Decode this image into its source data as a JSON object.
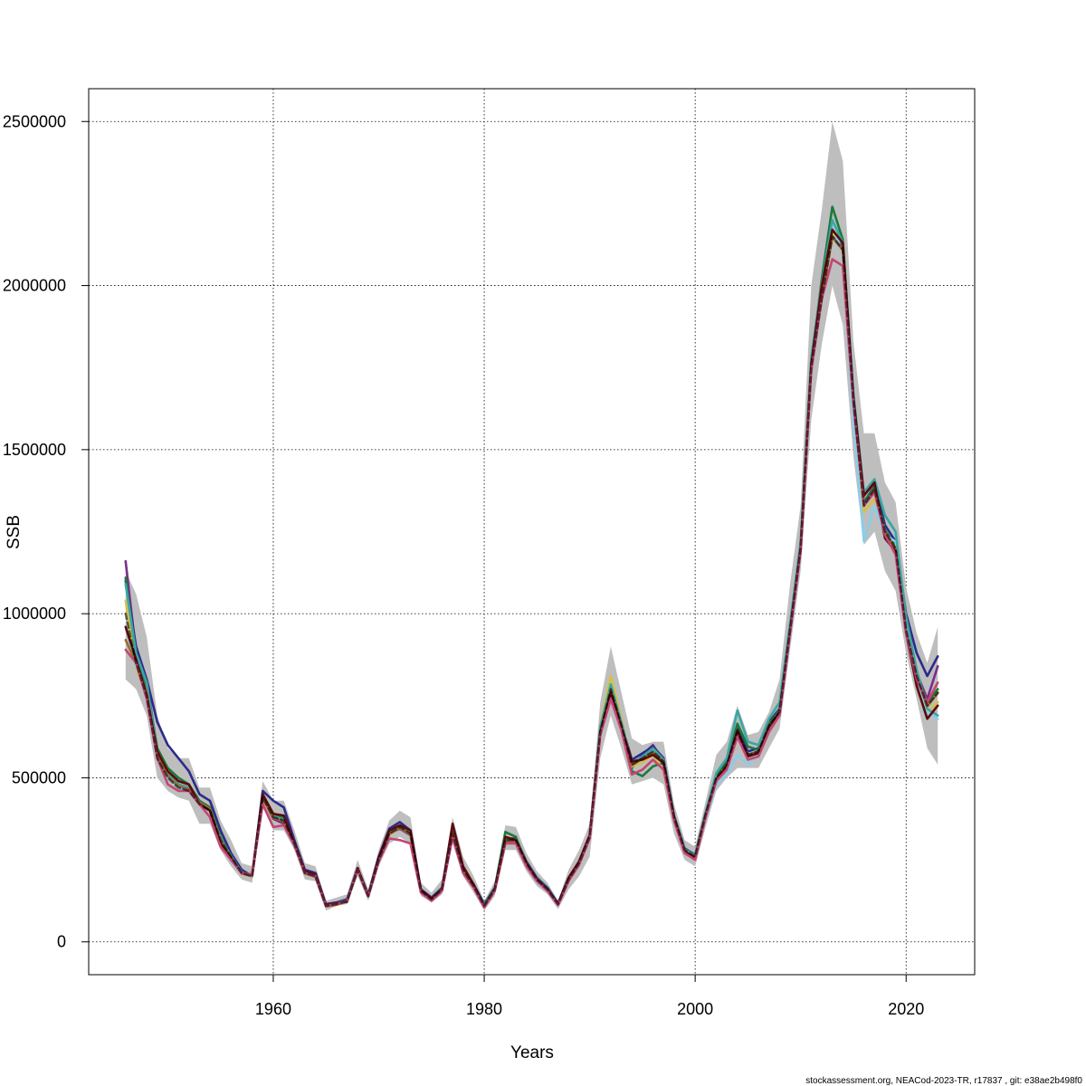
{
  "chart_data": {
    "type": "line",
    "title": "",
    "xlabel": "Years",
    "ylabel": "SSB",
    "xlim": [
      1942.5,
      2026.5
    ],
    "ylim": [
      -100000,
      2600000
    ],
    "x_ticks": [
      1960,
      1980,
      2000,
      2020
    ],
    "y_ticks": [
      0,
      500000,
      1000000,
      1500000,
      2000000,
      2500000
    ],
    "x_tick_labels": [
      "1960",
      "1980",
      "2000",
      "2020"
    ],
    "y_tick_labels": [
      "0",
      "500000",
      "1000000",
      "1500000",
      "2000000",
      "2500000"
    ],
    "grid": true,
    "legend": "none",
    "band_color": "#bebebe",
    "x": [
      1946,
      1947,
      1948,
      1949,
      1950,
      1951,
      1952,
      1953,
      1954,
      1955,
      1956,
      1957,
      1958,
      1959,
      1960,
      1961,
      1962,
      1963,
      1964,
      1965,
      1966,
      1967,
      1968,
      1969,
      1970,
      1971,
      1972,
      1973,
      1974,
      1975,
      1976,
      1977,
      1978,
      1979,
      1980,
      1981,
      1982,
      1983,
      1984,
      1985,
      1986,
      1987,
      1988,
      1989,
      1990,
      1991,
      1992,
      1993,
      1994,
      1995,
      1996,
      1997,
      1998,
      1999,
      2000,
      2001,
      2002,
      2003,
      2004,
      2005,
      2006,
      2007,
      2008,
      2009,
      2010,
      2011,
      2012,
      2013,
      2014,
      2015,
      2016,
      2017,
      2018,
      2019,
      2020,
      2021,
      2022,
      2023
    ],
    "base": [
      1000000,
      850000,
      750000,
      560000,
      500000,
      470000,
      460000,
      420000,
      400000,
      310000,
      260000,
      210000,
      200000,
      440000,
      380000,
      370000,
      300000,
      210000,
      200000,
      110000,
      115000,
      125000,
      220000,
      140000,
      250000,
      330000,
      350000,
      330000,
      155000,
      130000,
      160000,
      330000,
      220000,
      170000,
      110000,
      160000,
      310000,
      310000,
      240000,
      190000,
      160000,
      115000,
      190000,
      240000,
      320000,
      640000,
      770000,
      660000,
      540000,
      560000,
      580000,
      550000,
      380000,
      280000,
      260000,
      390000,
      500000,
      540000,
      640000,
      570000,
      580000,
      660000,
      700000,
      950000,
      1200000,
      1750000,
      1960000,
      2150000,
      2110000,
      1650000,
      1330000,
      1380000,
      1250000,
      1200000,
      950000,
      810000,
      720000,
      760000
    ],
    "lower": [
      800000,
      770000,
      690000,
      500000,
      460000,
      440000,
      430000,
      360000,
      360000,
      280000,
      230000,
      190000,
      180000,
      410000,
      340000,
      340000,
      280000,
      190000,
      185000,
      95000,
      110000,
      115000,
      200000,
      125000,
      230000,
      300000,
      320000,
      300000,
      140000,
      120000,
      145000,
      300000,
      200000,
      150000,
      95000,
      140000,
      280000,
      280000,
      215000,
      170000,
      145000,
      100000,
      160000,
      200000,
      260000,
      560000,
      690000,
      590000,
      480000,
      490000,
      500000,
      480000,
      330000,
      250000,
      230000,
      350000,
      460000,
      500000,
      530000,
      530000,
      530000,
      590000,
      650000,
      890000,
      1130000,
      1590000,
      1820000,
      2000000,
      1880000,
      1480000,
      1210000,
      1250000,
      1130000,
      1070000,
      880000,
      740000,
      590000,
      540000
    ],
    "upper": [
      1130000,
      1060000,
      930000,
      690000,
      590000,
      560000,
      560000,
      470000,
      470000,
      370000,
      310000,
      240000,
      230000,
      490000,
      430000,
      430000,
      340000,
      240000,
      230000,
      125000,
      135000,
      145000,
      250000,
      160000,
      280000,
      370000,
      400000,
      380000,
      180000,
      150000,
      190000,
      380000,
      260000,
      200000,
      125000,
      185000,
      355000,
      350000,
      270000,
      215000,
      180000,
      125000,
      220000,
      280000,
      360000,
      730000,
      900000,
      760000,
      620000,
      600000,
      610000,
      610000,
      420000,
      310000,
      290000,
      430000,
      570000,
      610000,
      720000,
      630000,
      640000,
      700000,
      800000,
      1090000,
      1330000,
      2000000,
      2230000,
      2500000,
      2380000,
      1830000,
      1550000,
      1550000,
      1400000,
      1340000,
      1080000,
      940000,
      850000,
      960000
    ],
    "series": [
      {
        "color": "#7b2d8b",
        "values": [
          1160000,
          880000,
          800000,
          580000,
          510000,
          480000,
          470000,
          420000,
          400000,
          300000,
          250000,
          210000,
          200000,
          440000,
          375000,
          360000,
          295000,
          210000,
          200000,
          110000,
          115000,
          125000,
          220000,
          140000,
          250000,
          330000,
          345000,
          325000,
          155000,
          130000,
          160000,
          325000,
          220000,
          170000,
          110000,
          160000,
          305000,
          305000,
          235000,
          190000,
          160000,
          115000,
          190000,
          240000,
          320000,
          635000,
          765000,
          650000,
          530000,
          570000,
          600000,
          550000,
          380000,
          280000,
          260000,
          385000,
          500000,
          540000,
          640000,
          570000,
          580000,
          660000,
          700000,
          950000,
          1200000,
          1760000,
          1980000,
          2150000,
          2110000,
          1650000,
          1340000,
          1390000,
          1250000,
          1200000,
          960000,
          820000,
          740000,
          840000
        ]
      },
      {
        "color": "#2b2b8c",
        "values": [
          1100000,
          900000,
          800000,
          670000,
          600000,
          560000,
          520000,
          450000,
          430000,
          340000,
          270000,
          220000,
          200000,
          460000,
          430000,
          410000,
          310000,
          220000,
          210000,
          115000,
          120000,
          130000,
          225000,
          145000,
          260000,
          345000,
          365000,
          340000,
          160000,
          135000,
          165000,
          335000,
          225000,
          175000,
          115000,
          165000,
          315000,
          315000,
          245000,
          195000,
          165000,
          118000,
          195000,
          245000,
          325000,
          650000,
          775000,
          665000,
          555000,
          575000,
          595000,
          560000,
          385000,
          285000,
          265000,
          395000,
          510000,
          550000,
          650000,
          580000,
          590000,
          670000,
          710000,
          960000,
          1210000,
          1770000,
          2000000,
          2170000,
          2120000,
          1660000,
          1360000,
          1400000,
          1270000,
          1220000,
          1000000,
          880000,
          810000,
          870000
        ]
      },
      {
        "color": "#1b7a3a",
        "values": [
          1110000,
          860000,
          780000,
          590000,
          530000,
          500000,
          480000,
          430000,
          410000,
          320000,
          260000,
          210000,
          205000,
          445000,
          390000,
          380000,
          300000,
          215000,
          205000,
          110000,
          118000,
          125000,
          222000,
          142000,
          252000,
          335000,
          355000,
          335000,
          157000,
          132000,
          162000,
          330000,
          222000,
          172000,
          112000,
          162000,
          335000,
          320000,
          240000,
          192000,
          162000,
          116000,
          192000,
          242000,
          322000,
          645000,
          772000,
          660000,
          520000,
          505000,
          535000,
          545000,
          382000,
          282000,
          262000,
          390000,
          505000,
          545000,
          665000,
          595000,
          585000,
          665000,
          705000,
          955000,
          1205000,
          1765000,
          2020000,
          2240000,
          2140000,
          1655000,
          1340000,
          1385000,
          1255000,
          1205000,
          965000,
          815000,
          730000,
          770000
        ]
      },
      {
        "color": "#d4c04a",
        "values": [
          1040000,
          830000,
          760000,
          570000,
          500000,
          470000,
          460000,
          420000,
          400000,
          305000,
          255000,
          210000,
          200000,
          435000,
          380000,
          370000,
          298000,
          210000,
          200000,
          110000,
          115000,
          125000,
          218000,
          140000,
          248000,
          328000,
          348000,
          328000,
          153000,
          128000,
          158000,
          328000,
          218000,
          168000,
          108000,
          158000,
          308000,
          308000,
          238000,
          188000,
          158000,
          113000,
          188000,
          238000,
          318000,
          660000,
          810000,
          680000,
          535000,
          545000,
          570000,
          520000,
          370000,
          275000,
          255000,
          380000,
          495000,
          535000,
          635000,
          565000,
          575000,
          655000,
          695000,
          945000,
          1195000,
          1745000,
          1960000,
          2160000,
          2130000,
          1640000,
          1310000,
          1350000,
          1240000,
          1190000,
          940000,
          790000,
          700000,
          730000
        ]
      },
      {
        "color": "#87ceeb",
        "values": [
          960000,
          840000,
          760000,
          560000,
          500000,
          470000,
          460000,
          420000,
          400000,
          310000,
          260000,
          210000,
          200000,
          440000,
          380000,
          370000,
          300000,
          210000,
          200000,
          110000,
          115000,
          125000,
          220000,
          140000,
          250000,
          330000,
          350000,
          330000,
          155000,
          130000,
          160000,
          330000,
          220000,
          170000,
          110000,
          160000,
          310000,
          310000,
          240000,
          190000,
          160000,
          115000,
          190000,
          240000,
          320000,
          640000,
          770000,
          660000,
          540000,
          560000,
          580000,
          550000,
          380000,
          280000,
          260000,
          375000,
          480000,
          510000,
          570000,
          540000,
          570000,
          650000,
          690000,
          940000,
          1190000,
          1740000,
          1980000,
          2180000,
          2100000,
          1580000,
          1220000,
          1330000,
          1240000,
          1220000,
          960000,
          800000,
          700000,
          680000
        ]
      },
      {
        "color": "#3aa6a6",
        "values": [
          1090000,
          880000,
          790000,
          575000,
          510000,
          480000,
          470000,
          425000,
          405000,
          315000,
          262000,
          212000,
          202000,
          442000,
          382000,
          372000,
          300000,
          212000,
          202000,
          110000,
          116000,
          126000,
          221000,
          141000,
          251000,
          332000,
          352000,
          332000,
          156000,
          131000,
          161000,
          331000,
          221000,
          171000,
          111000,
          161000,
          311000,
          311000,
          241000,
          191000,
          161000,
          116000,
          191000,
          241000,
          321000,
          655000,
          785000,
          670000,
          545000,
          565000,
          590000,
          555000,
          382000,
          282000,
          262000,
          395000,
          515000,
          560000,
          705000,
          610000,
          600000,
          680000,
          730000,
          970000,
          1220000,
          1780000,
          2010000,
          2200000,
          2130000,
          1670000,
          1370000,
          1410000,
          1300000,
          1250000,
          990000,
          830000,
          710000,
          690000
        ]
      },
      {
        "color": "#9c6b30",
        "values": [
          920000,
          850000,
          760000,
          565000,
          505000,
          475000,
          465000,
          425000,
          405000,
          310000,
          258000,
          208000,
          200000,
          438000,
          378000,
          368000,
          298000,
          208000,
          198000,
          108000,
          113000,
          123000,
          218000,
          138000,
          248000,
          328000,
          348000,
          328000,
          153000,
          128000,
          158000,
          328000,
          218000,
          168000,
          108000,
          158000,
          308000,
          308000,
          238000,
          188000,
          158000,
          113000,
          188000,
          238000,
          318000,
          638000,
          768000,
          658000,
          538000,
          558000,
          578000,
          548000,
          378000,
          278000,
          258000,
          388000,
          498000,
          538000,
          638000,
          568000,
          578000,
          658000,
          698000,
          948000,
          1198000,
          1748000,
          1958000,
          2148000,
          2108000,
          1648000,
          1328000,
          1378000,
          1248000,
          1198000,
          948000,
          808000,
          718000,
          758000
        ]
      },
      {
        "color": "#5c0a0a",
        "values": [
          960000,
          860000,
          750000,
          580000,
          520000,
          490000,
          480000,
          420000,
          400000,
          300000,
          255000,
          210000,
          205000,
          450000,
          390000,
          385000,
          300000,
          215000,
          205000,
          112000,
          118000,
          122000,
          225000,
          140000,
          255000,
          340000,
          355000,
          340000,
          158000,
          132000,
          160000,
          360000,
          230000,
          175000,
          108000,
          160000,
          320000,
          310000,
          240000,
          190000,
          160000,
          115000,
          195000,
          245000,
          325000,
          640000,
          760000,
          655000,
          550000,
          555000,
          570000,
          545000,
          380000,
          275000,
          255000,
          385000,
          495000,
          535000,
          645000,
          565000,
          575000,
          655000,
          700000,
          950000,
          1200000,
          1760000,
          2000000,
          2170000,
          2130000,
          1660000,
          1360000,
          1400000,
          1230000,
          1190000,
          940000,
          780000,
          680000,
          720000
        ]
      },
      {
        "color": "#c44574",
        "values": [
          890000,
          850000,
          740000,
          560000,
          480000,
          460000,
          460000,
          420000,
          380000,
          290000,
          250000,
          210000,
          205000,
          420000,
          350000,
          355000,
          295000,
          210000,
          200000,
          110000,
          115000,
          125000,
          220000,
          140000,
          245000,
          315000,
          310000,
          300000,
          150000,
          125000,
          155000,
          320000,
          210000,
          165000,
          105000,
          155000,
          300000,
          300000,
          230000,
          185000,
          155000,
          112000,
          185000,
          235000,
          315000,
          630000,
          740000,
          645000,
          510000,
          525000,
          555000,
          525000,
          370000,
          270000,
          250000,
          380000,
          490000,
          525000,
          625000,
          555000,
          565000,
          640000,
          690000,
          940000,
          1190000,
          1740000,
          1960000,
          2080000,
          2060000,
          1640000,
          1330000,
          1370000,
          1240000,
          1180000,
          940000,
          800000,
          730000,
          790000
        ]
      }
    ]
  },
  "footer": "stockassessment.org, NEACod-2023-TR, r17837 , git: e38ae2b498f0"
}
